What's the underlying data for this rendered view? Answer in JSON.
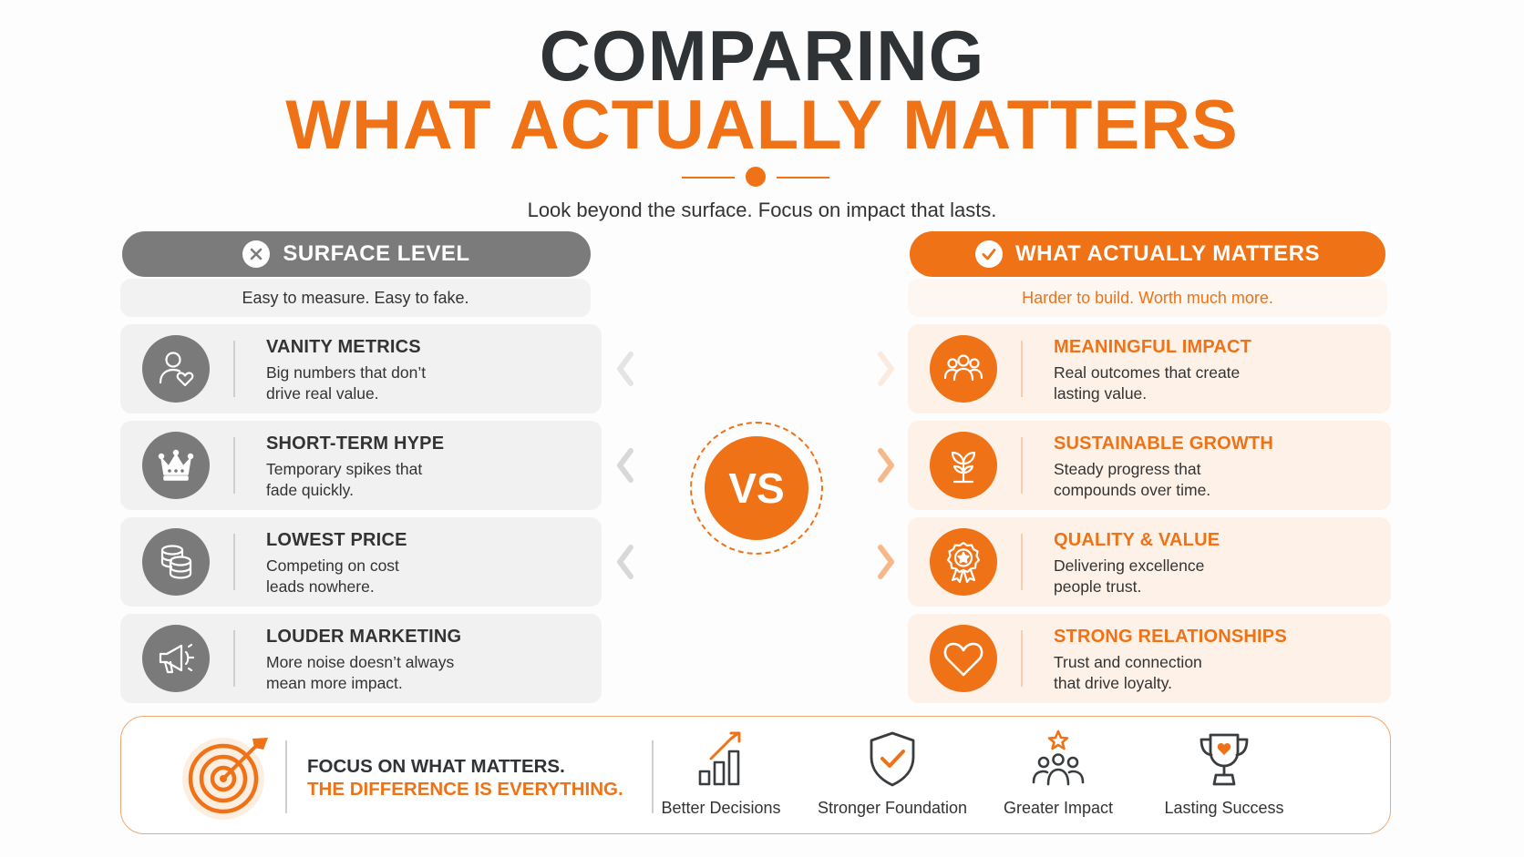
{
  "title": {
    "line1": "COMPARING",
    "line2": "WHAT ACTUALLY MATTERS"
  },
  "subtitle": "Look beyond the surface. Focus on impact that lasts.",
  "colors": {
    "accent": "#ef7216",
    "neutral": "#7a7a7a",
    "dark": "#2f3336"
  },
  "left": {
    "header": "SURFACE LEVEL",
    "header_icon": "x-circle-icon",
    "tagline": "Easy to measure. Easy to fake.",
    "cards": [
      {
        "icon": "person-heart-icon",
        "title": "VANITY METRICS",
        "desc1": "Big numbers that don’t",
        "desc2": "drive real value."
      },
      {
        "icon": "crown-icon",
        "title": "SHORT-TERM HYPE",
        "desc1": "Temporary spikes that",
        "desc2": "fade quickly."
      },
      {
        "icon": "coins-icon",
        "title": "LOWEST PRICE",
        "desc1": "Competing on cost",
        "desc2": "leads nowhere."
      },
      {
        "icon": "megaphone-icon",
        "title": "LOUDER MARKETING",
        "desc1": "More noise doesn’t always",
        "desc2": "mean more impact."
      }
    ]
  },
  "right": {
    "header": "WHAT ACTUALLY MATTERS",
    "header_icon": "check-circle-icon",
    "tagline": "Harder to build. Worth much more.",
    "cards": [
      {
        "icon": "people-group-icon",
        "title": "MEANINGFUL IMPACT",
        "desc1": "Real outcomes that create",
        "desc2": "lasting value."
      },
      {
        "icon": "plant-icon",
        "title": "SUSTAINABLE GROWTH",
        "desc1": "Steady progress that",
        "desc2": "compounds over time."
      },
      {
        "icon": "award-badge-icon",
        "title": "QUALITY & VALUE",
        "desc1": "Delivering excellence",
        "desc2": "people trust."
      },
      {
        "icon": "heart-icon",
        "title": "STRONG RELATIONSHIPS",
        "desc1": "Trust and connection",
        "desc2": "that drive loyalty."
      }
    ]
  },
  "vs": "VS",
  "banner": {
    "icon": "target-arrow-icon",
    "line1": "FOCUS ON WHAT MATTERS.",
    "line2": "THE DIFFERENCE IS EVERYTHING.",
    "benefits": [
      {
        "icon": "bar-chart-up-icon",
        "label": "Better Decisions"
      },
      {
        "icon": "shield-check-icon",
        "label": "Stronger Foundation"
      },
      {
        "icon": "team-star-icon",
        "label": "Greater Impact"
      },
      {
        "icon": "trophy-icon",
        "label": "Lasting Success"
      }
    ]
  }
}
